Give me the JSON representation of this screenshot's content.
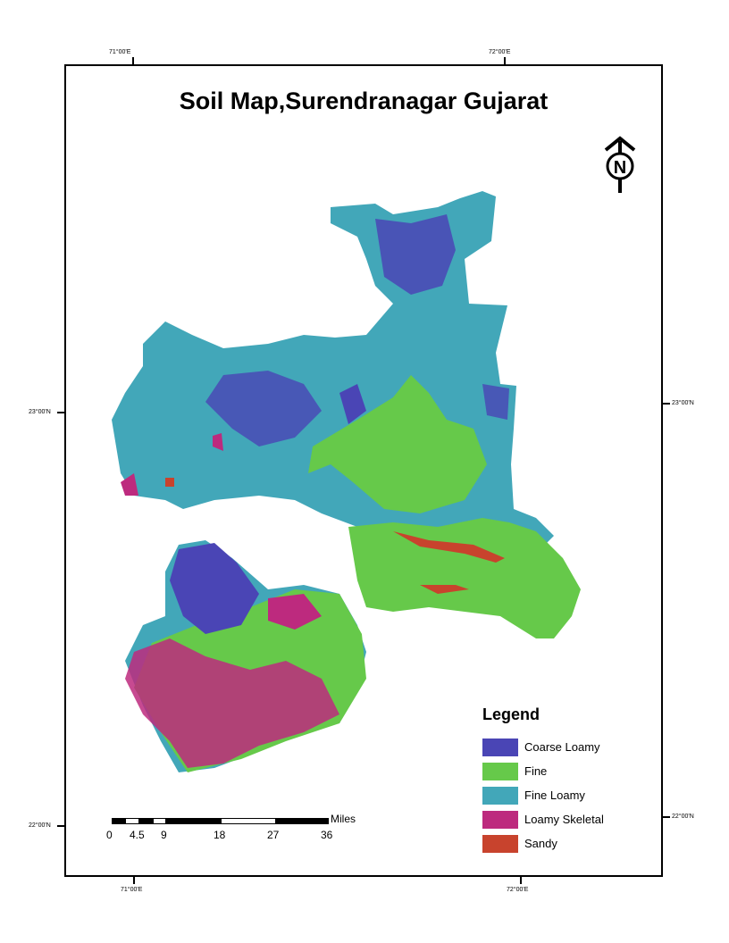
{
  "title": "Soil Map,Surendranagar Gujarat",
  "graticule": {
    "top": [
      "71°00'E",
      "72°00'E"
    ],
    "bottom": [
      "71°00'E",
      "72°00'E"
    ],
    "left": [
      "23°00'N",
      "22°00'N"
    ],
    "right": [
      "23°00'N",
      "22°00'N"
    ]
  },
  "north_arrow": {
    "label": "N",
    "icon": "north-arrow-icon"
  },
  "legend": {
    "title": "Legend",
    "items": [
      {
        "label": "Coarse Loamy",
        "color": "#4a45b5"
      },
      {
        "label": "Fine",
        "color": "#66c94a"
      },
      {
        "label": "Fine Loamy",
        "color": "#42a7b9"
      },
      {
        "label": "Loamy Skeletal",
        "color": "#bd2a7e"
      },
      {
        "label": "Sandy",
        "color": "#c8432d"
      }
    ]
  },
  "scale_bar": {
    "unit": "Miles",
    "ticks": [
      "0",
      "4.5",
      "9",
      "18",
      "27",
      "36"
    ]
  }
}
